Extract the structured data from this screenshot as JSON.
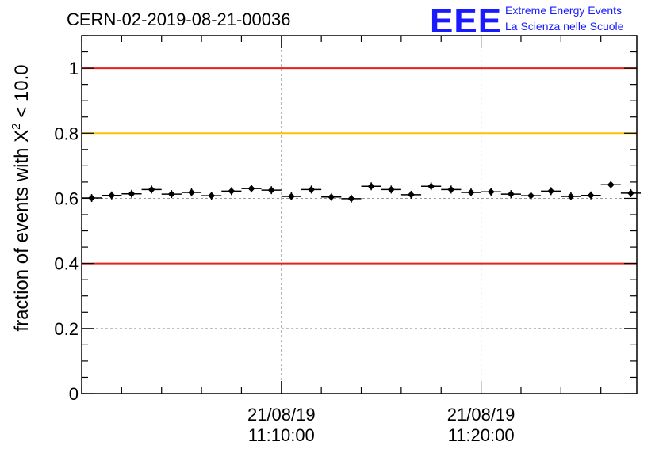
{
  "header": {
    "title": "CERN-02-2019-08-21-00036",
    "logo_text": "EEE",
    "logo_line1": "Extreme Energy Events",
    "logo_line2": "La Scienza nelle Scuole",
    "logo_color": "#1a1aff"
  },
  "chart_data": {
    "type": "scatter",
    "title": "CERN-02-2019-08-21-00036",
    "ylabel_prefix": "fraction of events with ",
    "ylabel_symbol": "Χ",
    "ylabel_sup": "2",
    "ylabel_suffix": " < 10.0",
    "ylim": [
      0,
      1.1
    ],
    "yticks": [
      {
        "value": 0,
        "label": "0"
      },
      {
        "value": 0.2,
        "label": "0.2"
      },
      {
        "value": 0.4,
        "label": "0.4"
      },
      {
        "value": 0.6,
        "label": "0.6"
      },
      {
        "value": 0.8,
        "label": "0.8"
      },
      {
        "value": 1.0,
        "label": "1"
      }
    ],
    "x_unit": "minutes",
    "xlim": [
      0,
      27.8
    ],
    "xticks": [
      {
        "value": 10,
        "date": "21/08/19",
        "time": "11:10:00"
      },
      {
        "value": 20,
        "date": "21/08/19",
        "time": "11:20:00"
      }
    ],
    "reference_lines": [
      {
        "value": 1.0,
        "color": "#e8201c"
      },
      {
        "value": 0.8,
        "color": "#ffc000"
      },
      {
        "value": 0.4,
        "color": "#e8201c"
      }
    ],
    "grid": true,
    "marker_color": "#000000",
    "bin_width": 1,
    "x": [
      0.5,
      1.5,
      2.5,
      3.5,
      4.5,
      5.5,
      6.5,
      7.5,
      8.5,
      9.5,
      10.5,
      11.5,
      12.5,
      13.5,
      14.5,
      15.5,
      16.5,
      17.5,
      18.5,
      19.5,
      20.5,
      21.5,
      22.5,
      23.5,
      24.5,
      25.5,
      26.5,
      27.5
    ],
    "y": [
      0.601,
      0.609,
      0.614,
      0.627,
      0.613,
      0.618,
      0.608,
      0.622,
      0.63,
      0.625,
      0.606,
      0.627,
      0.604,
      0.599,
      0.637,
      0.627,
      0.611,
      0.637,
      0.627,
      0.618,
      0.62,
      0.613,
      0.608,
      0.622,
      0.606,
      0.609,
      0.642,
      0.616
    ]
  }
}
